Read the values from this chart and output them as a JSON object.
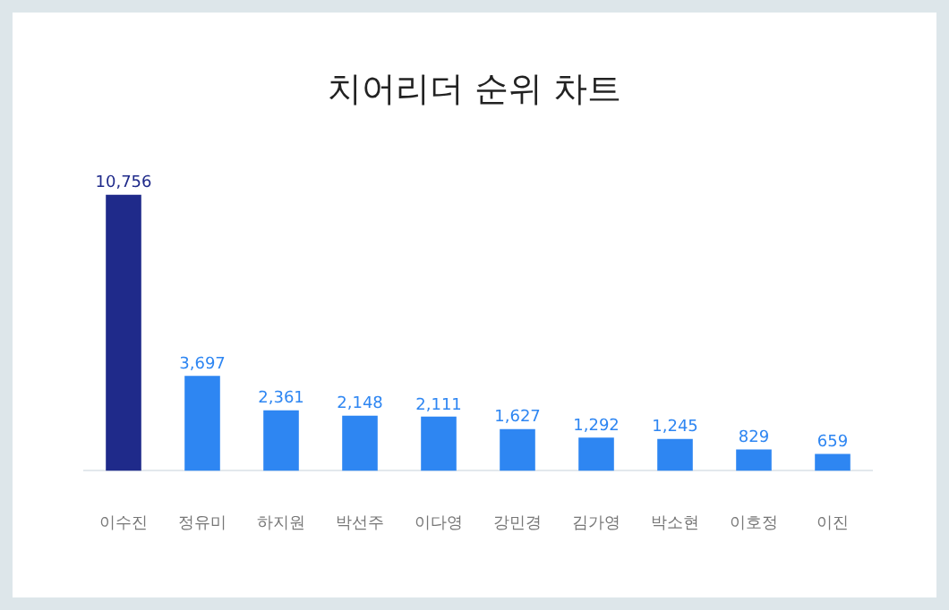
{
  "chart_data": {
    "type": "bar",
    "title": "치어리더 순위 차트",
    "categories": [
      "이수진",
      "정유미",
      "하지원",
      "박선주",
      "이다영",
      "강민경",
      "김가영",
      "박소현",
      "이호정",
      "이진"
    ],
    "values": [
      10756,
      3697,
      2361,
      2148,
      2111,
      1627,
      1292,
      1245,
      829,
      659
    ],
    "colors": [
      "#1f2a8a",
      "#2e86f2",
      "#2e86f2",
      "#2e86f2",
      "#2e86f2",
      "#2e86f2",
      "#2e86f2",
      "#2e86f2",
      "#2e86f2",
      "#2e86f2"
    ],
    "value_labels": [
      "10,756",
      "3,697",
      "2,361",
      "2,148",
      "2,111",
      "1,627",
      "1,292",
      "1,245",
      "829",
      "659"
    ],
    "grid": false,
    "legend": false
  }
}
